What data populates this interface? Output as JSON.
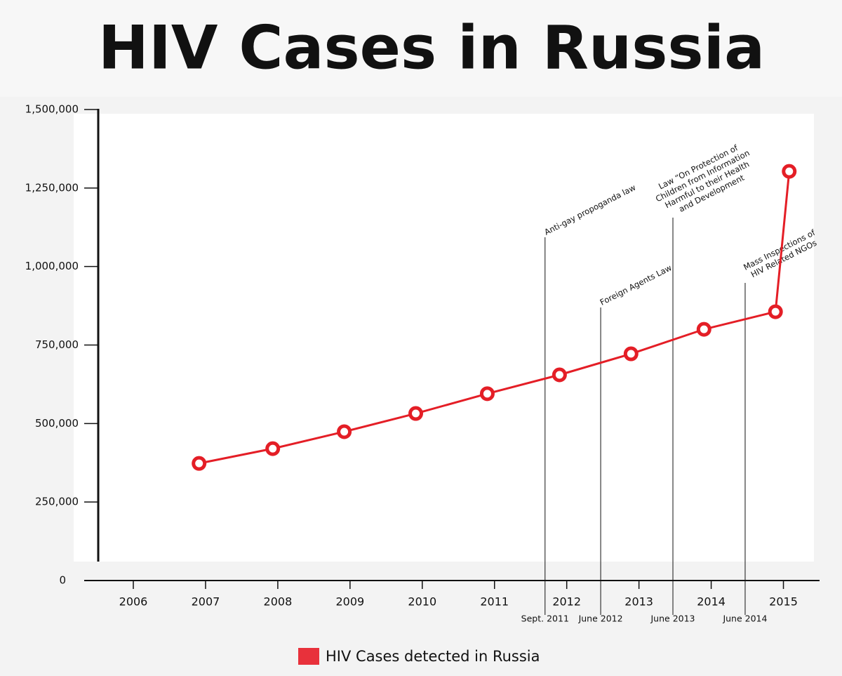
{
  "chart_data": {
    "type": "line",
    "title": "HIV Cases in Russia",
    "xlim": [
      2005.32,
      2015.5
    ],
    "xticks": [
      2006,
      2007,
      2008,
      2009,
      2010,
      2011,
      2012,
      2013,
      2014,
      2015
    ],
    "ylim": [
      0,
      1500000
    ],
    "yticks": [
      {
        "value": 0,
        "label": "0"
      },
      {
        "value": 250000,
        "label": "250,000"
      },
      {
        "value": 500000,
        "label": "500,000"
      },
      {
        "value": 750000,
        "label": "750,000"
      },
      {
        "value": 1000000,
        "label": "1,000,000"
      },
      {
        "value": 1250000,
        "label": "1,250,000"
      },
      {
        "value": 1500000,
        "label": "1,500,000"
      }
    ],
    "series": [
      {
        "name": "HIV Cases detected in Russia",
        "color": "#e41e26",
        "x": [
          2006.91,
          2007.93,
          2008.92,
          2009.91,
          2010.9,
          2011.9,
          2012.89,
          2013.9,
          2014.89,
          2015.08
        ],
        "values": [
          373000,
          420000,
          474000,
          532000,
          595000,
          655000,
          722000,
          800000,
          856000,
          1303000
        ]
      }
    ],
    "events": [
      {
        "x": 2011.7,
        "date": "Sept. 2011",
        "text": [
          "Anti-gay propoganda law"
        ]
      },
      {
        "x": 2012.47,
        "date": "June 2012",
        "text": [
          "Foreign Agents Law"
        ]
      },
      {
        "x": 2013.47,
        "date": "June 2013",
        "text": [
          "Law “On Protection of",
          "Children from Information",
          "Harmful to their Health",
          "and Development"
        ]
      },
      {
        "x": 2014.47,
        "date": "June 2014",
        "text": [
          "Mass Inspections of",
          "HIV Related NGOs"
        ]
      }
    ]
  }
}
